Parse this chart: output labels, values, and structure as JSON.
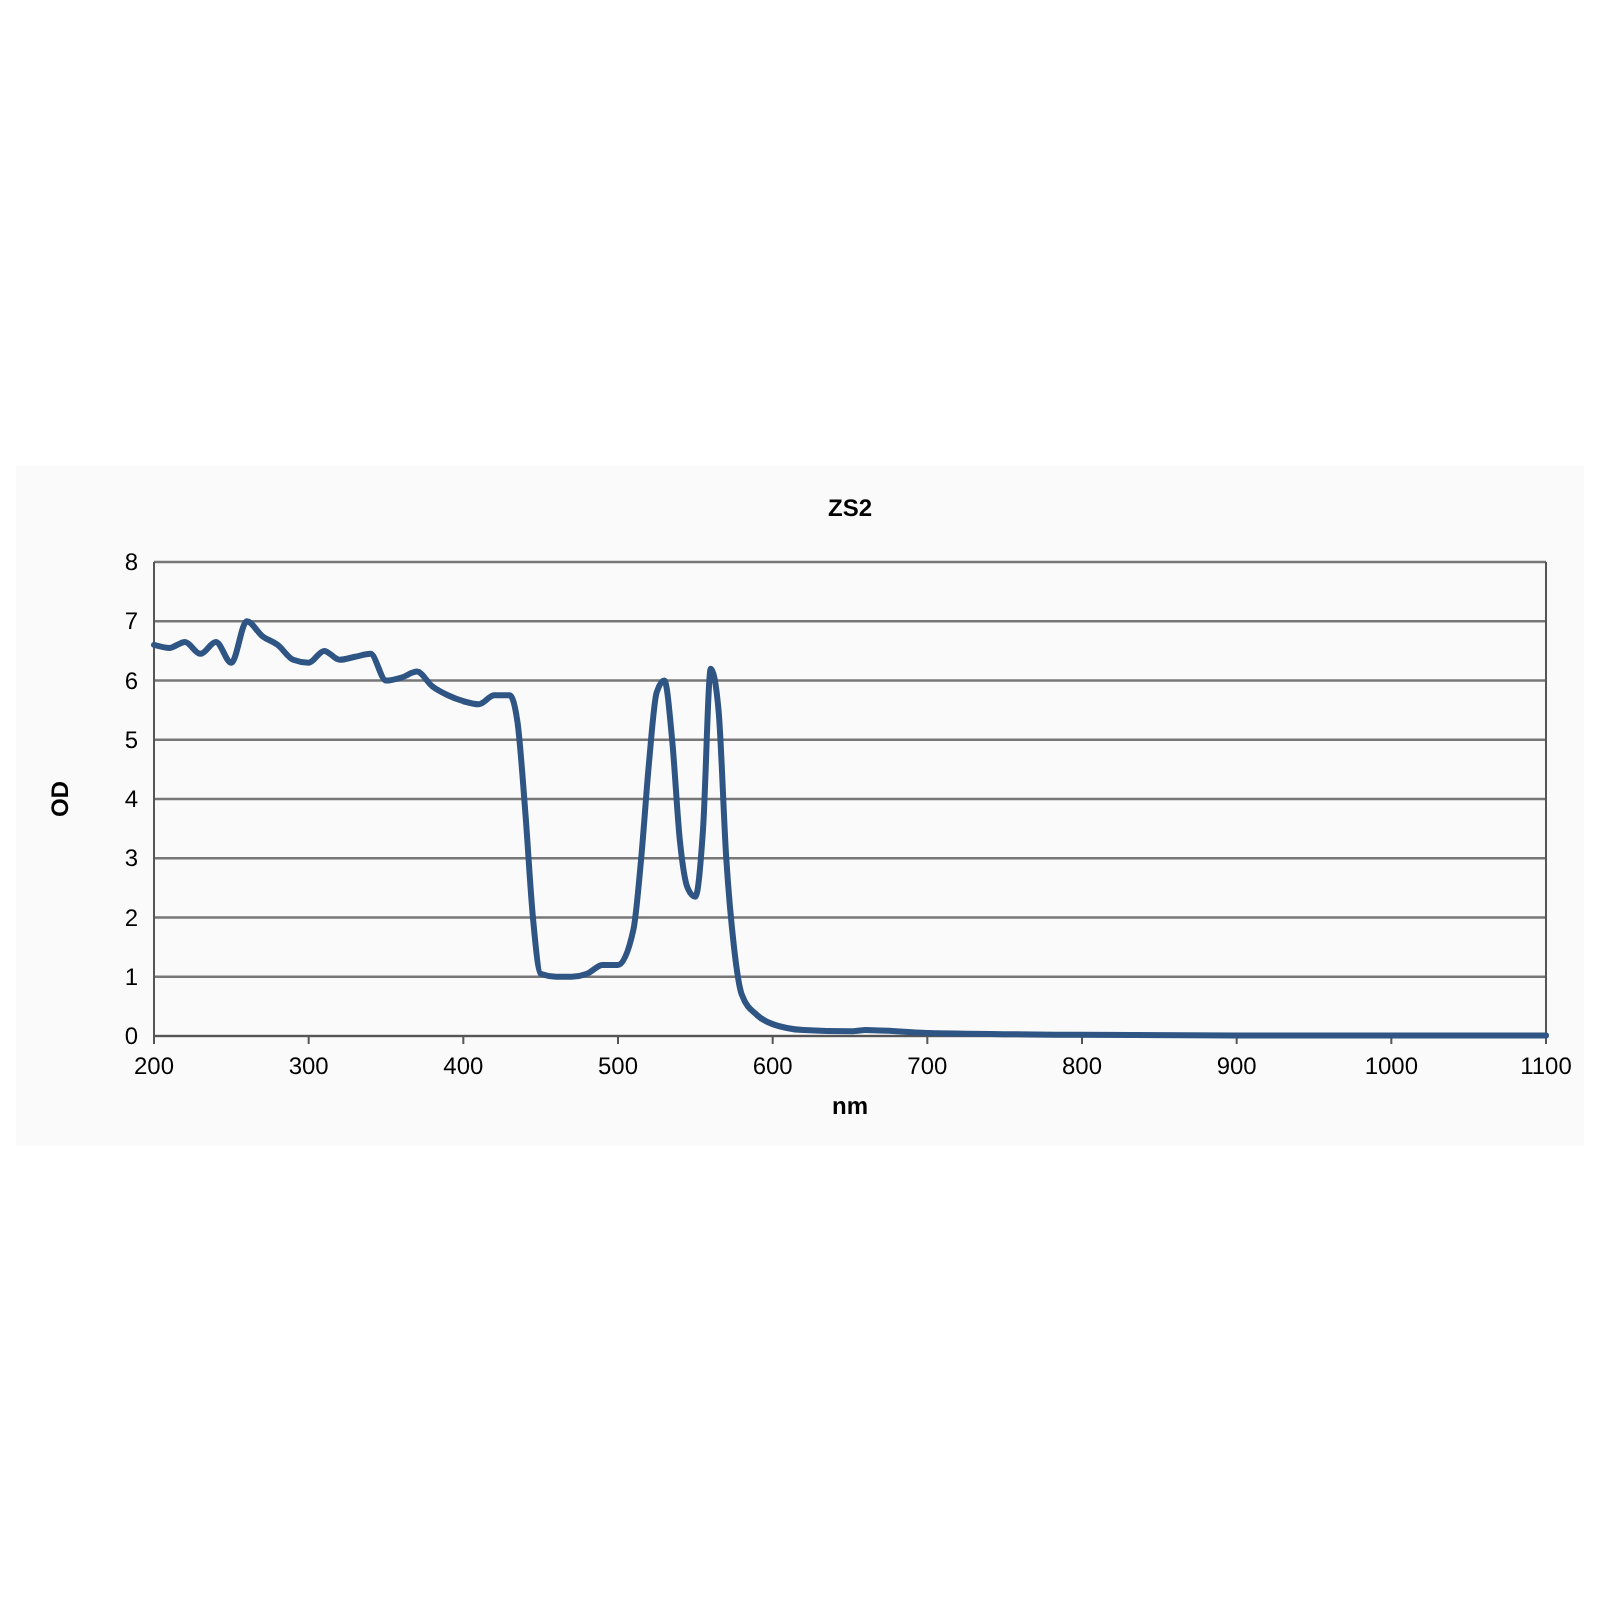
{
  "chart_data": {
    "type": "line",
    "title": "ZS2",
    "xlabel": "nm",
    "ylabel": "OD",
    "xlim": [
      200,
      1100
    ],
    "xticks": [
      200,
      300,
      400,
      500,
      600,
      700,
      800,
      900,
      1000,
      1100
    ],
    "ylim": [
      0,
      8
    ],
    "yticks": [
      0,
      1,
      2,
      3,
      4,
      5,
      6,
      7,
      8
    ],
    "grid": "y",
    "marker": "none",
    "line_style": "solid",
    "series": [
      {
        "color": "#2f5584",
        "x": [
          200,
          210,
          220,
          230,
          240,
          250,
          260,
          270,
          280,
          290,
          300,
          310,
          320,
          330,
          340,
          350,
          360,
          370,
          380,
          390,
          400,
          410,
          420,
          430,
          435,
          440,
          445,
          450,
          460,
          470,
          480,
          490,
          500,
          510,
          515,
          520,
          525,
          530,
          535,
          540,
          545,
          550,
          555,
          560,
          565,
          570,
          575,
          580,
          590,
          600,
          620,
          650,
          660,
          700,
          800,
          900,
          1000,
          1100
        ],
        "values": [
          6.6,
          6.55,
          6.65,
          6.45,
          6.65,
          6.3,
          7.0,
          6.75,
          6.6,
          6.35,
          6.3,
          6.5,
          6.35,
          6.4,
          6.45,
          6.0,
          6.05,
          6.15,
          5.9,
          5.75,
          5.65,
          5.6,
          5.75,
          5.75,
          5.3,
          3.8,
          2.0,
          1.05,
          1.0,
          1.0,
          1.05,
          1.2,
          1.2,
          1.8,
          3.0,
          4.6,
          5.8,
          6.0,
          5.0,
          3.3,
          2.5,
          2.35,
          3.5,
          6.2,
          5.5,
          3.0,
          1.5,
          0.7,
          0.35,
          0.2,
          0.1,
          0.08,
          0.1,
          0.05,
          0.02,
          0.01,
          0.01,
          0.01
        ]
      }
    ]
  }
}
